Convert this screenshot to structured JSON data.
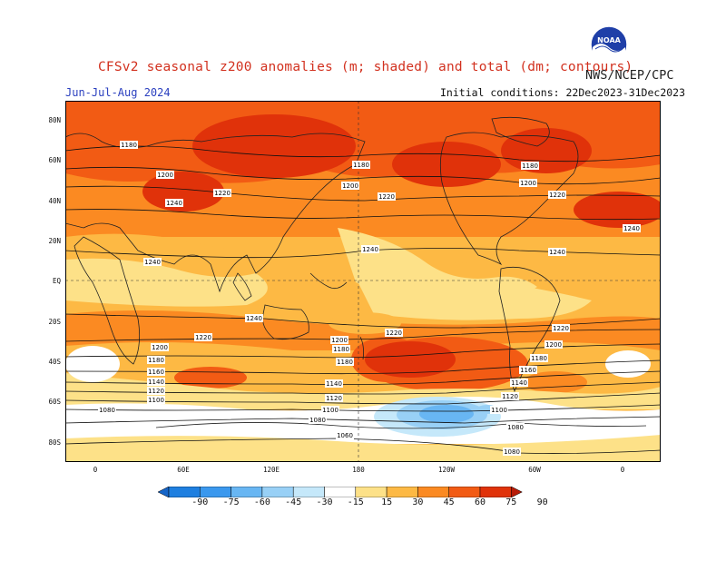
{
  "header": {
    "title": "CFSv2 seasonal z200 anomalies (m; shaded) and total (dm; contours)",
    "agency": "NWS/NCEP/CPC",
    "season": "Jun-Jul-Aug 2024",
    "initial_conditions": "Initial conditions: 22Dec2023-31Dec2023",
    "logo_text": "NOAA"
  },
  "axes": {
    "lat_labels": [
      "80N",
      "60N",
      "40N",
      "20N",
      "EQ",
      "20S",
      "40S",
      "60S",
      "80S"
    ],
    "lon_labels": [
      "0",
      "60E",
      "120E",
      "180",
      "120W",
      "60W",
      "0"
    ]
  },
  "contour_labels": [
    "1180",
    "1200",
    "1220",
    "1240",
    "1160",
    "1140",
    "1120",
    "1100",
    "1080",
    "1060"
  ],
  "colorbar": {
    "levels": [
      "-90",
      "-75",
      "-60",
      "-45",
      "-30",
      "-15",
      "15",
      "30",
      "45",
      "60",
      "75",
      "90"
    ],
    "colors": [
      "#1565c8",
      "#1e7fe0",
      "#3a98ee",
      "#68b6f3",
      "#98d0f6",
      "#c5e8fa",
      "#ffffff",
      "#fde188",
      "#fdb944",
      "#fb8a22",
      "#f25b14",
      "#e0320a",
      "#b81c08"
    ]
  },
  "colors": {
    "title": "#d2311f",
    "season": "#2a3fbf"
  }
}
